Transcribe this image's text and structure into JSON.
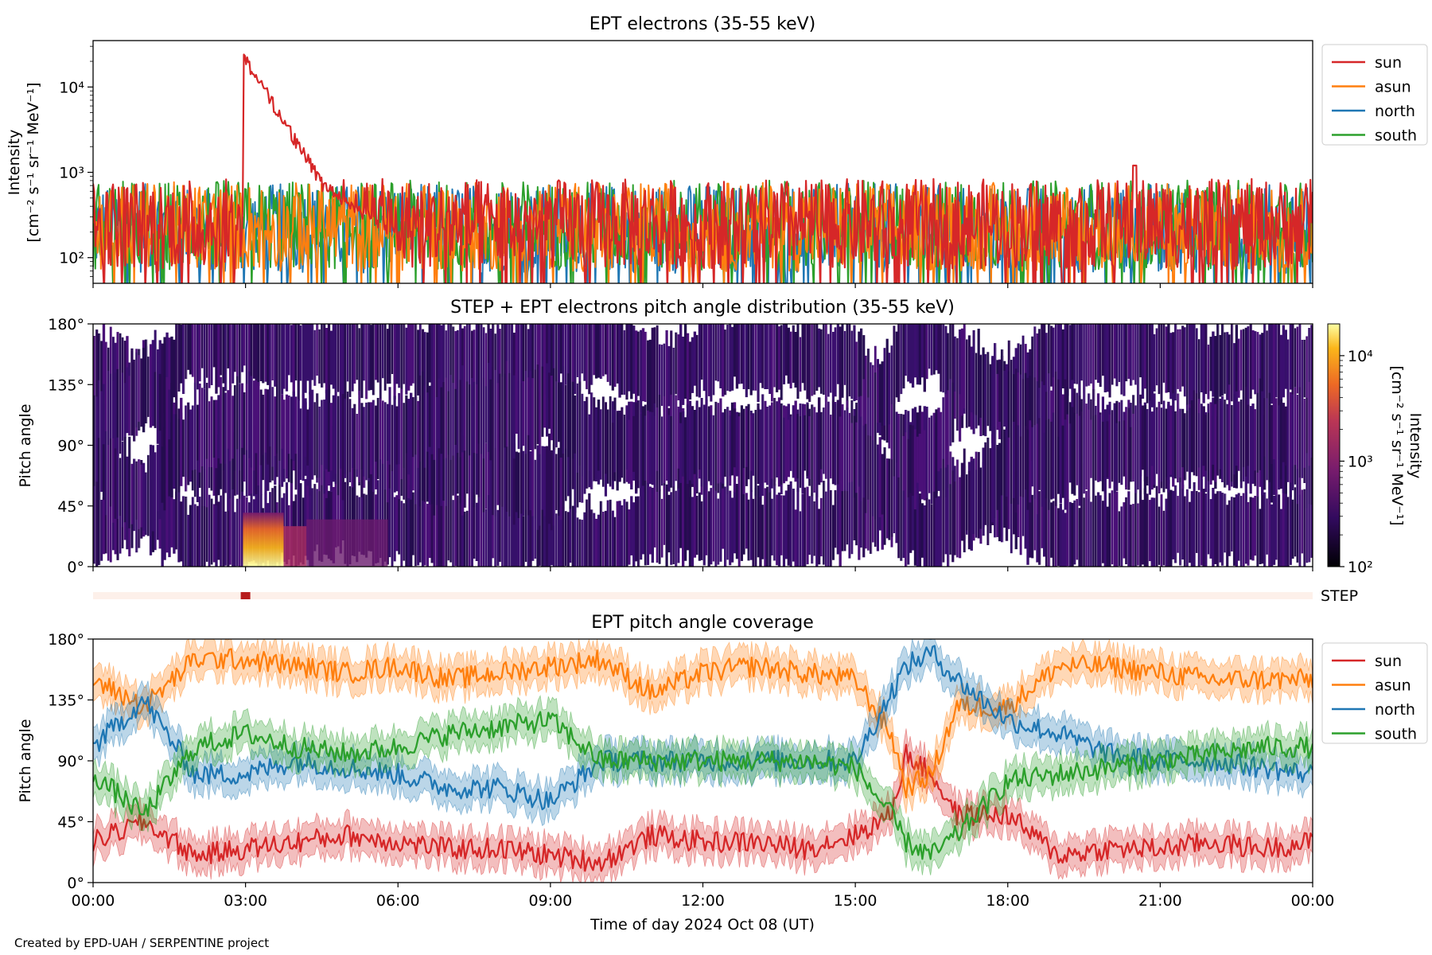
{
  "figure": {
    "credit": "Created by EPD-UAH / SERPENTINE project",
    "xlabel": "Time of day 2024 Oct 08 (UT)",
    "xticks": [
      "00:00",
      "03:00",
      "06:00",
      "09:00",
      "12:00",
      "15:00",
      "18:00",
      "21:00",
      "00:00"
    ]
  },
  "colors": {
    "sun": "#d62728",
    "asun": "#ff7f0e",
    "north": "#1f77b4",
    "south": "#2ca02c"
  },
  "chart_data": [
    {
      "type": "line",
      "title": "EPT electrons (35-55 keV)",
      "ylabel": "Intensity",
      "yunit": "[cm⁻² s⁻¹ sr⁻¹ MeV⁻¹]",
      "yscale": "log",
      "ylim": [
        50,
        35000
      ],
      "yticks": [
        {
          "value": 100,
          "label": "10²"
        },
        {
          "value": 1000,
          "label": "10³"
        },
        {
          "value": 10000,
          "label": "10⁴"
        }
      ],
      "xlim_hours": [
        0,
        24
      ],
      "legend": "outside-right",
      "legend_entries": [
        "sun",
        "asun",
        "north",
        "south"
      ],
      "series": [
        {
          "name": "sun",
          "baseline": 250,
          "peak": {
            "hour": 3.0,
            "value": 23000
          },
          "secondary": {
            "hour": 20.5,
            "value": 1200
          }
        },
        {
          "name": "asun",
          "baseline": 230
        },
        {
          "name": "north",
          "baseline": 220
        },
        {
          "name": "south",
          "baseline": 240
        }
      ]
    },
    {
      "type": "heatmap",
      "title": "STEP + EPT electrons pitch angle distribution (35-55 keV)",
      "ylabel": "Pitch angle",
      "ylim": [
        0,
        180
      ],
      "yticks": [
        "0°",
        "45°",
        "90°",
        "135°",
        "180°"
      ],
      "colorbar": {
        "label": "Intensity",
        "unit": "[cm⁻² s⁻¹ sr⁻¹ MeV⁻¹]",
        "scale": "log",
        "range": [
          100,
          20000
        ],
        "ticks": [
          {
            "value": 100,
            "label": "10²"
          },
          {
            "value": 1000,
            "label": "10³"
          },
          {
            "value": 10000,
            "label": "10⁴"
          }
        ]
      },
      "hotspot": {
        "hour": 3.0,
        "pitch_range": [
          0,
          40
        ],
        "value": 20000
      },
      "step_strip": {
        "label": "STEP",
        "marker_hour": 3.0
      }
    },
    {
      "type": "line",
      "title": "EPT pitch angle coverage",
      "ylabel": "Pitch angle",
      "ylim": [
        0,
        180
      ],
      "yticks": [
        "0°",
        "45°",
        "90°",
        "135°",
        "180°"
      ],
      "legend": "outside-right",
      "legend_entries": [
        "sun",
        "asun",
        "north",
        "south"
      ],
      "series": [
        {
          "name": "sun",
          "x": [
            0,
            1,
            2,
            3,
            4,
            5,
            6,
            7,
            8,
            9,
            10,
            11,
            12,
            13,
            14,
            15,
            15.7,
            16,
            16.5,
            17,
            18,
            19,
            20,
            21,
            22,
            23,
            24
          ],
          "y": [
            30,
            45,
            20,
            25,
            30,
            35,
            30,
            25,
            25,
            20,
            15,
            35,
            30,
            30,
            25,
            35,
            50,
            95,
            80,
            50,
            50,
            20,
            25,
            25,
            30,
            25,
            30
          ]
        },
        {
          "name": "asun",
          "x": [
            0,
            1,
            2,
            3,
            4,
            5,
            6,
            7,
            8,
            9,
            10,
            11,
            12,
            13,
            14,
            15,
            15.7,
            16,
            16.5,
            17,
            18,
            19,
            20,
            21,
            22,
            23,
            24
          ],
          "y": [
            150,
            130,
            165,
            165,
            160,
            155,
            160,
            150,
            155,
            160,
            165,
            140,
            155,
            160,
            155,
            150,
            110,
            70,
            80,
            130,
            130,
            160,
            160,
            155,
            150,
            150,
            150
          ]
        },
        {
          "name": "north",
          "x": [
            0,
            1,
            2,
            3,
            4,
            5,
            6,
            7,
            8,
            9,
            10,
            11,
            12,
            13,
            14,
            15,
            15.7,
            16,
            16.5,
            17,
            18,
            19,
            20,
            21,
            22,
            23,
            24
          ],
          "y": [
            100,
            135,
            80,
            80,
            90,
            85,
            80,
            70,
            70,
            60,
            90,
            90,
            90,
            90,
            90,
            90,
            140,
            160,
            170,
            150,
            120,
            110,
            95,
            90,
            90,
            85,
            80
          ]
        },
        {
          "name": "south",
          "x": [
            0,
            1,
            2,
            3,
            4,
            5,
            6,
            7,
            8,
            9,
            10,
            11,
            12,
            13,
            14,
            15,
            15.7,
            16,
            16.5,
            17,
            18,
            19,
            20,
            21,
            22,
            23,
            24
          ],
          "y": [
            80,
            50,
            100,
            110,
            100,
            95,
            100,
            110,
            115,
            120,
            90,
            90,
            90,
            90,
            90,
            85,
            50,
            30,
            20,
            35,
            75,
            80,
            85,
            90,
            95,
            100,
            100
          ]
        }
      ]
    }
  ]
}
